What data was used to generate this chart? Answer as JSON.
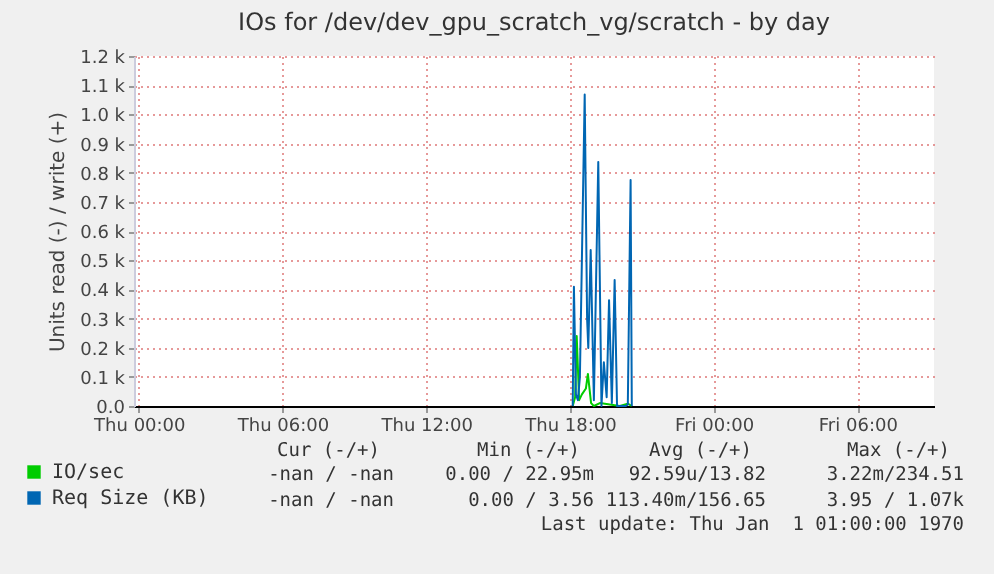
{
  "chart_data": {
    "type": "line",
    "title": "IOs for /dev/dev_gpu_scratch_vg/scratch - by day",
    "ylabel": "Units read (-) / write (+)",
    "xlim": [
      "1969-12-31T23:48",
      "1970-01-02T09:12"
    ],
    "xticks": [
      {
        "value": "1970-01-01T00:00",
        "label": "Thu 00:00"
      },
      {
        "value": "1970-01-01T06:00",
        "label": "Thu 06:00"
      },
      {
        "value": "1970-01-01T12:00",
        "label": "Thu 12:00"
      },
      {
        "value": "1970-01-01T18:00",
        "label": "Thu 18:00"
      },
      {
        "value": "1970-01-02T00:00",
        "label": "Fri 00:00"
      },
      {
        "value": "1970-01-02T06:00",
        "label": "Fri 06:00"
      }
    ],
    "ylim": [
      0,
      1200
    ],
    "yticks": [
      {
        "value": 0,
        "label": "0.0"
      },
      {
        "value": 100,
        "label": "0.1 k"
      },
      {
        "value": 200,
        "label": "0.2 k"
      },
      {
        "value": 300,
        "label": "0.3 k"
      },
      {
        "value": 400,
        "label": "0.4 k"
      },
      {
        "value": 500,
        "label": "0.5 k"
      },
      {
        "value": 600,
        "label": "0.6 k"
      },
      {
        "value": 700,
        "label": "0.7 k"
      },
      {
        "value": 800,
        "label": "0.8 k"
      },
      {
        "value": 900,
        "label": "0.9 k"
      },
      {
        "value": 1000,
        "label": "1.0 k"
      },
      {
        "value": 1100,
        "label": "1.1 k"
      },
      {
        "value": 1200,
        "label": "1.2 k"
      }
    ],
    "grid": true,
    "legend": "bottom",
    "marker": "none",
    "line_style": "solid",
    "series": [
      {
        "name": "IO/sec",
        "color": "#00cc00",
        "x": [
          "1970-01-01T18:07",
          "1970-01-01T18:13",
          "1970-01-01T18:17",
          "1970-01-01T18:23",
          "1970-01-01T18:30",
          "1970-01-01T18:40",
          "1970-01-01T18:45",
          "1970-01-01T18:53",
          "1970-01-01T19:00",
          "1970-01-01T19:15",
          "1970-01-01T19:40",
          "1970-01-01T20:05",
          "1970-01-01T20:25",
          "1970-01-01T20:35"
        ],
        "values": [
          0,
          30,
          240,
          20,
          40,
          60,
          110,
          10,
          0,
          10,
          5,
          0,
          8,
          0
        ]
      },
      {
        "name": "Req Size (KB)",
        "color": "#0066b3",
        "x": [
          "1970-01-01T18:07",
          "1970-01-01T18:10",
          "1970-01-01T18:15",
          "1970-01-01T18:20",
          "1970-01-01T18:25",
          "1970-01-01T18:37",
          "1970-01-01T18:43",
          "1970-01-01T18:46",
          "1970-01-01T18:52",
          "1970-01-01T19:00",
          "1970-01-01T19:11",
          "1970-01-01T19:19",
          "1970-01-01T19:25",
          "1970-01-01T19:32",
          "1970-01-01T19:38",
          "1970-01-01T19:45",
          "1970-01-01T19:52",
          "1970-01-01T19:58",
          "1970-01-01T20:20",
          "1970-01-01T20:25",
          "1970-01-01T20:32",
          "1970-01-01T20:35"
        ],
        "values": [
          0,
          409,
          40,
          20,
          100,
          1068,
          300,
          199,
          535,
          20,
          837,
          0,
          150,
          30,
          363,
          10,
          432,
          0,
          0,
          5,
          775,
          0
        ]
      }
    ],
    "annotations": [
      "Cur (-/+)",
      "Min (-/+)",
      "Avg (-/+)",
      "Max (-/+)",
      "-nan / -nan",
      "0.00 / 22.95m",
      "92.59u/13.82",
      "3.22m/234.51",
      "-nan / -nan",
      "0.00 / 3.56",
      "113.40m/156.65",
      "3.95 / 1.07k",
      "Last update: Thu Jan  1 01:00:00 1970"
    ]
  }
}
